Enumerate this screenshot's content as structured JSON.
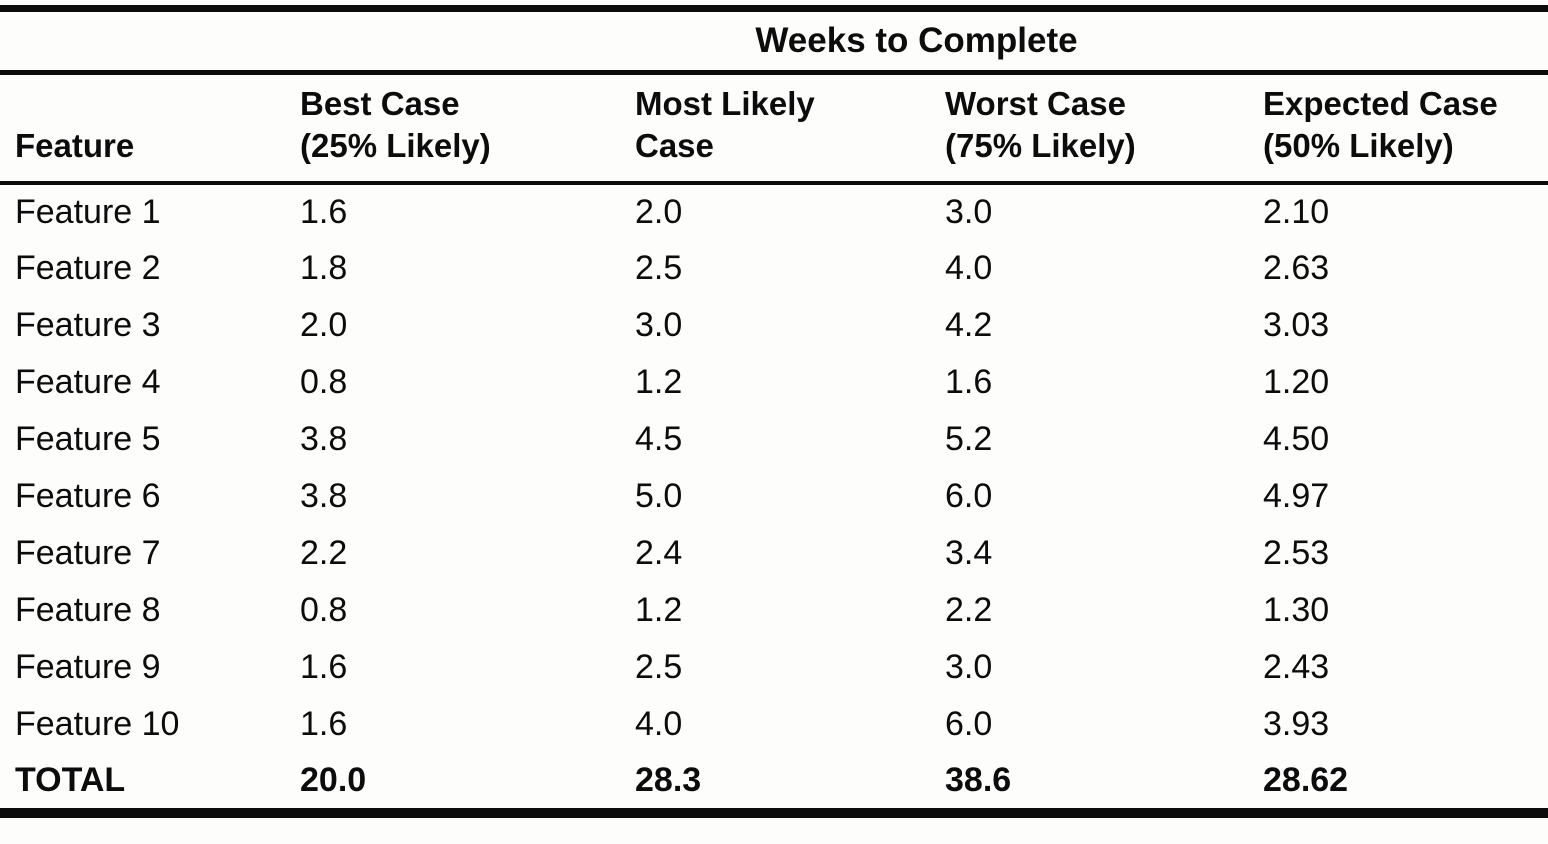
{
  "table": {
    "span_header": "Weeks to Complete",
    "columns": {
      "feature": "Feature",
      "best": {
        "line1": "Best Case",
        "line2": "(25% Likely)"
      },
      "likely": {
        "line1": "Most Likely",
        "line2": "Case"
      },
      "worst": {
        "line1": "Worst Case",
        "line2": "(75% Likely)"
      },
      "expected": {
        "line1": "Expected Case",
        "line2": "(50% Likely)"
      }
    },
    "rows": [
      {
        "feature": "Feature 1",
        "best": "1.6",
        "likely": "2.0",
        "worst": "3.0",
        "expected": "2.10"
      },
      {
        "feature": "Feature 2",
        "best": "1.8",
        "likely": "2.5",
        "worst": "4.0",
        "expected": "2.63"
      },
      {
        "feature": "Feature 3",
        "best": "2.0",
        "likely": "3.0",
        "worst": "4.2",
        "expected": "3.03"
      },
      {
        "feature": "Feature 4",
        "best": "0.8",
        "likely": "1.2",
        "worst": "1.6",
        "expected": "1.20"
      },
      {
        "feature": "Feature 5",
        "best": "3.8",
        "likely": "4.5",
        "worst": "5.2",
        "expected": "4.50"
      },
      {
        "feature": "Feature 6",
        "best": "3.8",
        "likely": "5.0",
        "worst": "6.0",
        "expected": "4.97"
      },
      {
        "feature": "Feature 7",
        "best": "2.2",
        "likely": "2.4",
        "worst": "3.4",
        "expected": "2.53"
      },
      {
        "feature": "Feature 8",
        "best": "0.8",
        "likely": "1.2",
        "worst": "2.2",
        "expected": "1.30"
      },
      {
        "feature": "Feature 9",
        "best": "1.6",
        "likely": "2.5",
        "worst": "3.0",
        "expected": "2.43"
      },
      {
        "feature": "Feature 10",
        "best": "1.6",
        "likely": "4.0",
        "worst": "6.0",
        "expected": "3.93"
      }
    ],
    "total": {
      "feature": "TOTAL",
      "best": "20.0",
      "likely": "28.3",
      "worst": "38.6",
      "expected": "28.62"
    }
  }
}
